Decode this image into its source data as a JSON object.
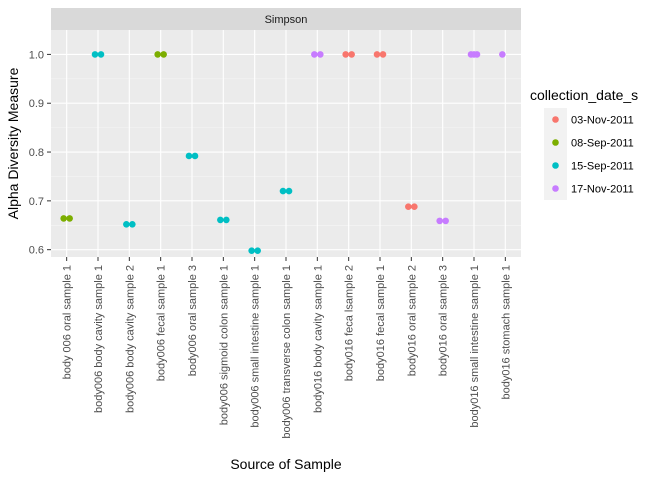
{
  "chart_data": {
    "type": "scatter",
    "facet_title": "Simpson",
    "xlabel": "Source of Sample",
    "ylabel": "Alpha Diversity Measure",
    "ylim": [
      0.585,
      1.05
    ],
    "yticks": [
      0.6,
      0.7,
      0.8,
      0.9,
      1.0
    ],
    "ytick_labels": [
      "0.6",
      "0.7",
      "0.8",
      "0.9",
      "1.0"
    ],
    "grid": true,
    "legend_position": "right",
    "legend_title": "collection_date_s",
    "legend": [
      {
        "label": "03-Nov-2011",
        "color": "#F8766D"
      },
      {
        "label": "08-Sep-2011",
        "color": "#7CAE00"
      },
      {
        "label": "15-Sep-2011",
        "color": "#00BFC4"
      },
      {
        "label": "17-Nov-2011",
        "color": "#C77CFF"
      }
    ],
    "categories": [
      "body 006 oral sample 1",
      "body006 body cavity sample 1",
      "body006 body cavity sample 2",
      "body006 fecal sample 1",
      "body006 oral sample 3",
      "body006 sigmoid colon sample 1",
      "body006 small intestine sample 1",
      "body006 transverse colon sample 1",
      "body016 body cavity sample 1",
      "body016 feca lsample 2",
      "body016 fecal sample 1",
      "body016 oral sample 2",
      "body016 oral sample 3",
      "body016 small intestine sample 1",
      "body016 stomach sample 1"
    ],
    "points": [
      {
        "category": "body 006 oral sample 1",
        "value": 0.664,
        "group": "08-Sep-2011"
      },
      {
        "category": "body 006 oral sample 1",
        "value": 0.664,
        "group": "08-Sep-2011"
      },
      {
        "category": "body006 body cavity sample 1",
        "value": 1.0,
        "group": "15-Sep-2011"
      },
      {
        "category": "body006 body cavity sample 1",
        "value": 1.0,
        "group": "15-Sep-2011"
      },
      {
        "category": "body006 body cavity sample 2",
        "value": 0.652,
        "group": "15-Sep-2011"
      },
      {
        "category": "body006 body cavity sample 2",
        "value": 0.652,
        "group": "15-Sep-2011"
      },
      {
        "category": "body006 fecal sample 1",
        "value": 1.0,
        "group": "08-Sep-2011"
      },
      {
        "category": "body006 fecal sample 1",
        "value": 1.0,
        "group": "08-Sep-2011"
      },
      {
        "category": "body006 oral sample 3",
        "value": 0.792,
        "group": "15-Sep-2011"
      },
      {
        "category": "body006 oral sample 3",
        "value": 0.792,
        "group": "15-Sep-2011"
      },
      {
        "category": "body006 sigmoid colon sample 1",
        "value": 0.661,
        "group": "15-Sep-2011"
      },
      {
        "category": "body006 sigmoid colon sample 1",
        "value": 0.661,
        "group": "15-Sep-2011"
      },
      {
        "category": "body006 small intestine sample 1",
        "value": 0.598,
        "group": "15-Sep-2011"
      },
      {
        "category": "body006 small intestine sample 1",
        "value": 0.598,
        "group": "15-Sep-2011"
      },
      {
        "category": "body006 transverse colon sample 1",
        "value": 0.72,
        "group": "15-Sep-2011"
      },
      {
        "category": "body006 transverse colon sample 1",
        "value": 0.72,
        "group": "15-Sep-2011"
      },
      {
        "category": "body016 body cavity sample 1",
        "value": 1.0,
        "group": "17-Nov-2011"
      },
      {
        "category": "body016 body cavity sample 1",
        "value": 1.0,
        "group": "17-Nov-2011"
      },
      {
        "category": "body016 feca lsample 2",
        "value": 1.0,
        "group": "03-Nov-2011"
      },
      {
        "category": "body016 feca lsample 2",
        "value": 1.0,
        "group": "03-Nov-2011"
      },
      {
        "category": "body016 fecal sample 1",
        "value": 1.0,
        "group": "03-Nov-2011"
      },
      {
        "category": "body016 fecal sample 1",
        "value": 1.0,
        "group": "03-Nov-2011"
      },
      {
        "category": "body016 oral sample 2",
        "value": 0.688,
        "group": "03-Nov-2011"
      },
      {
        "category": "body016 oral sample 2",
        "value": 0.688,
        "group": "03-Nov-2011"
      },
      {
        "category": "body016 oral sample 3",
        "value": 0.659,
        "group": "17-Nov-2011"
      },
      {
        "category": "body016 oral sample 3",
        "value": 0.659,
        "group": "17-Nov-2011"
      },
      {
        "category": "body016 small intestine sample 1",
        "value": 1.0,
        "group": "17-Nov-2011"
      },
      {
        "category": "body016 small intestine sample 1",
        "value": 1.0,
        "group": "17-Nov-2011"
      },
      {
        "category": "body016 small intestine sample 1",
        "value": 1.0,
        "group": "17-Nov-2011"
      },
      {
        "category": "body016 stomach sample 1",
        "value": 1.0,
        "group": "17-Nov-2011"
      }
    ]
  }
}
